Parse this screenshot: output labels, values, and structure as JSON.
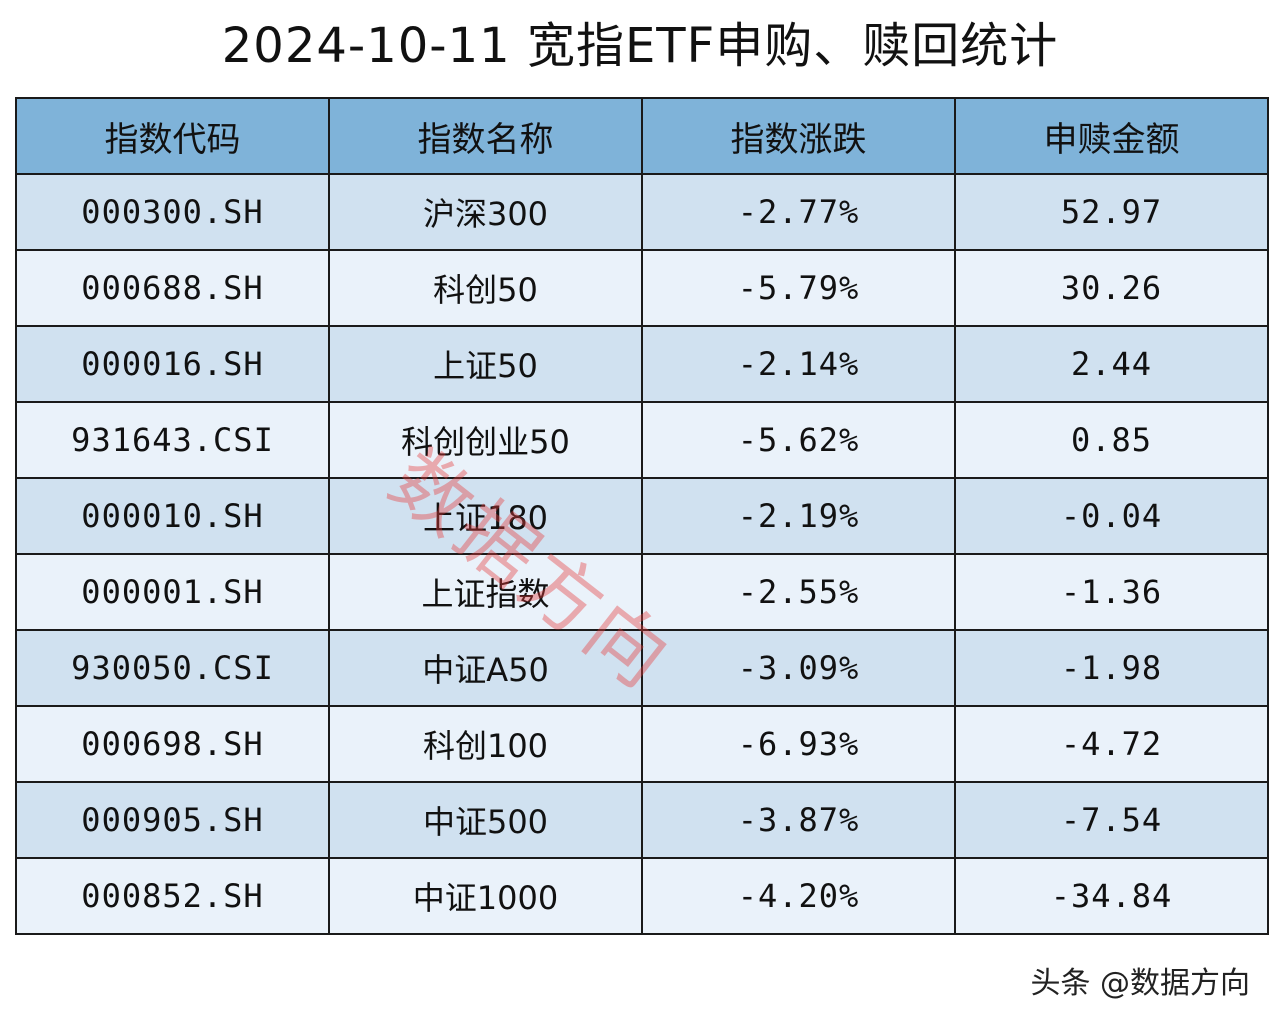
{
  "title": "2024-10-11 宽指ETF申购、赎回统计",
  "table": {
    "headers": [
      "指数代码",
      "指数名称",
      "指数涨跌",
      "申赎金额"
    ],
    "rows": [
      {
        "code": "000300.SH",
        "name": "沪深300",
        "change": "-2.77%",
        "amount": "52.97"
      },
      {
        "code": "000688.SH",
        "name": "科创50",
        "change": "-5.79%",
        "amount": "30.26"
      },
      {
        "code": "000016.SH",
        "name": "上证50",
        "change": "-2.14%",
        "amount": "2.44"
      },
      {
        "code": "931643.CSI",
        "name": "科创创业50",
        "change": "-5.62%",
        "amount": "0.85"
      },
      {
        "code": "000010.SH",
        "name": "上证180",
        "change": "-2.19%",
        "amount": "-0.04"
      },
      {
        "code": "000001.SH",
        "name": "上证指数",
        "change": "-2.55%",
        "amount": "-1.36"
      },
      {
        "code": "930050.CSI",
        "name": "中证A50",
        "change": "-3.09%",
        "amount": "-1.98"
      },
      {
        "code": "000698.SH",
        "name": "科创100",
        "change": "-6.93%",
        "amount": "-4.72"
      },
      {
        "code": "000905.SH",
        "name": "中证500",
        "change": "-3.87%",
        "amount": "-7.54"
      },
      {
        "code": "000852.SH",
        "name": "中证1000",
        "change": "-4.20%",
        "amount": "-34.84"
      }
    ]
  },
  "watermark": "数据方向",
  "source": "头条 @数据方向",
  "colors": {
    "header_bg": "#7fb3d9",
    "row_odd_bg": "#d0e1f0",
    "row_even_bg": "#eaf2fa",
    "watermark": "#e63c3c"
  }
}
